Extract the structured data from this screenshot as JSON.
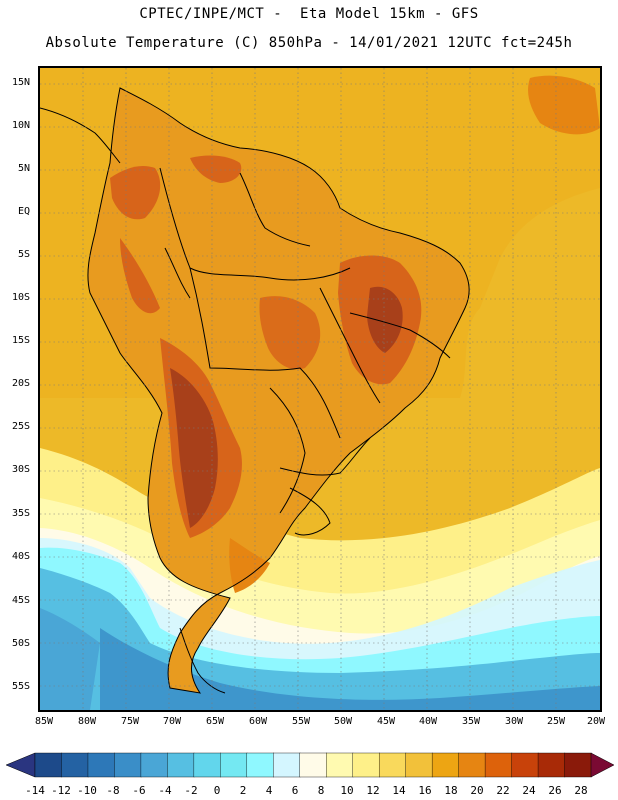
{
  "header": {
    "line1": "CPTEC/INPE/MCT -  Eta Model 15km - GFS",
    "line2": "Absolute Temperature (C) 850hPa - 14/01/2021 12UTC fct=245h"
  },
  "map": {
    "lat_labels": [
      "15N",
      "10N",
      "5N",
      "EQ",
      "5S",
      "10S",
      "15S",
      "20S",
      "25S",
      "30S",
      "35S",
      "40S",
      "45S",
      "50S",
      "55S"
    ],
    "lon_labels": [
      "85W",
      "80W",
      "75W",
      "70W",
      "65W",
      "60W",
      "55W",
      "50W",
      "45W",
      "40W",
      "35W",
      "30W",
      "25W",
      "20W"
    ],
    "grid_lines": true
  },
  "colorbar": {
    "labels": [
      "-14",
      "-12",
      "-10",
      "-8",
      "-6",
      "-4",
      "-2",
      "0",
      "2",
      "4",
      "6",
      "8",
      "10",
      "12",
      "14",
      "16",
      "18",
      "20",
      "22",
      "24",
      "26",
      "28"
    ],
    "colors": [
      "#7a0a33",
      "#1d4a8a",
      "#2462a3",
      "#2d78b8",
      "#3a8ec8",
      "#4aa6d6",
      "#56bfe2",
      "#62d6ec",
      "#74e8f2",
      "#8ff8ff",
      "#d4f6ff",
      "#fffbe8",
      "#fffab0",
      "#fef089",
      "#f9d95c",
      "#f2c13a",
      "#eda513",
      "#e68512",
      "#dd620b",
      "#c8420a",
      "#a82a07",
      "#8a1a0a",
      "#6e1008"
    ],
    "end_left_color": "#2a3580",
    "end_right_color": "#7a0a33"
  },
  "colors": {
    "ocean_warm": "#edb928",
    "ocean_mid": "#f2c84a",
    "land_base": "#e89b1f",
    "land_hot": "#d7641a",
    "land_very_hot": "#a8401a",
    "cold_pale": "#fffbe8",
    "cold_cyan": "#8ff8ff",
    "cold_blue": "#56bfe2",
    "cold_deep": "#2d78b8",
    "border": "#000000",
    "grid": "#7a7a7a"
  }
}
